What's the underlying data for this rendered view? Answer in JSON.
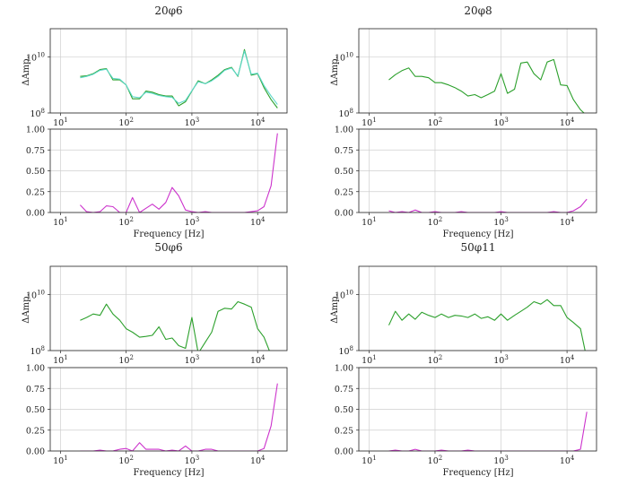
{
  "colors": {
    "measured": "#2ca02c",
    "fitted": "#5ad8c8",
    "ratio": "#cc33cc"
  },
  "chart_data": [
    {
      "type": "line",
      "title": "20φ6",
      "xlabel": "Frequency [Hz]",
      "top": {
        "ylabel": "ΔAmp.",
        "yscale": "log",
        "ylim": [
          100000000.0,
          100000000000.0
        ],
        "ticks": [
          {
            "v": 100000000.0,
            "label": "10",
            "sup": "8"
          },
          {
            "v": 10000000000.0,
            "label": "10",
            "sup": "10"
          }
        ],
        "series": [
          {
            "name": "measured",
            "color_key": "measured",
            "x": [
              20,
              25,
              31.5,
              40,
              50,
              63,
              80,
              100,
              125,
              160,
              200,
              250,
              315,
              400,
              500,
              630,
              800,
              1000,
              1250,
              1600,
              2000,
              2500,
              3150,
              4000,
              5000,
              6300,
              8000,
              10000,
              12500,
              16000,
              20000
            ],
            "y": [
              2000000000.0,
              2100000000.0,
              2500000000.0,
              3500000000.0,
              3800000000.0,
              1500000000.0,
              1500000000.0,
              1000000000.0,
              320000000.0,
              320000000.0,
              600000000.0,
              550000000.0,
              450000000.0,
              400000000.0,
              400000000.0,
              180000000.0,
              250000000.0,
              600000000.0,
              1400000000.0,
              1100000000.0,
              1500000000.0,
              2200000000.0,
              3500000000.0,
              4200000000.0,
              2000000000.0,
              18000000000.0,
              2200000000.0,
              2500000000.0,
              800000000.0,
              300000000.0,
              150000000.0
            ]
          },
          {
            "name": "fitted",
            "color_key": "fitted",
            "x": [
              20,
              25,
              31.5,
              40,
              50,
              63,
              80,
              100,
              125,
              160,
              200,
              250,
              315,
              400,
              500,
              630,
              800,
              1000,
              1250,
              1600,
              2000,
              2500,
              3150,
              4000,
              5000,
              6300,
              8000,
              10000,
              12500,
              16000,
              20000
            ],
            "y": [
              1800000000.0,
              2000000000.0,
              2400000000.0,
              3300000000.0,
              3600000000.0,
              1700000000.0,
              1600000000.0,
              1000000000.0,
              380000000.0,
              350000000.0,
              550000000.0,
              500000000.0,
              420000000.0,
              380000000.0,
              360000000.0,
              220000000.0,
              280000000.0,
              620000000.0,
              1300000000.0,
              1100000000.0,
              1400000000.0,
              2000000000.0,
              3300000000.0,
              4000000000.0,
              2100000000.0,
              16000000000.0,
              2400000000.0,
              2600000000.0,
              950000000.0,
              400000000.0,
              200000000.0
            ]
          }
        ]
      },
      "bottom": {
        "ylim": [
          0,
          1
        ],
        "yticks": [
          "0.00",
          "0.25",
          "0.50",
          "0.75",
          "1.00"
        ],
        "series": [
          {
            "name": "ratio",
            "color_key": "ratio",
            "x": [
              20,
              25,
              31.5,
              40,
              50,
              63,
              80,
              100,
              125,
              160,
              200,
              250,
              315,
              400,
              500,
              630,
              800,
              1000,
              1250,
              1600,
              2000,
              2500,
              3150,
              4000,
              5000,
              6300,
              8000,
              10000,
              12500,
              16000,
              20000
            ],
            "y": [
              0.09,
              0.01,
              0.0,
              0.01,
              0.08,
              0.07,
              0.0,
              0.0,
              0.18,
              0.0,
              0.05,
              0.1,
              0.04,
              0.12,
              0.3,
              0.2,
              0.03,
              0.01,
              0.0,
              0.01,
              0.0,
              0.0,
              0.0,
              0.0,
              0.0,
              0.0,
              0.01,
              0.02,
              0.07,
              0.32,
              0.95
            ]
          }
        ]
      }
    },
    {
      "type": "line",
      "title": "20φ8",
      "xlabel": "Frequency [Hz]",
      "top": {
        "ylabel": "ΔAmp.",
        "yscale": "log",
        "ylim": [
          100000000.0,
          100000000000.0
        ],
        "ticks": [
          {
            "v": 100000000.0,
            "label": "10",
            "sup": "8"
          },
          {
            "v": 10000000000.0,
            "label": "10",
            "sup": "10"
          }
        ],
        "series": [
          {
            "name": "measured",
            "color_key": "measured",
            "x": [
              20,
              25,
              31.5,
              40,
              50,
              63,
              80,
              100,
              125,
              160,
              200,
              250,
              315,
              400,
              500,
              630,
              800,
              1000,
              1250,
              1600,
              2000,
              2500,
              3150,
              4000,
              5000,
              6300,
              8000,
              10000,
              12500,
              16000,
              20000
            ],
            "y": [
              1500000000.0,
              2300000000.0,
              3200000000.0,
              4000000000.0,
              2000000000.0,
              2000000000.0,
              1800000000.0,
              1200000000.0,
              1200000000.0,
              1000000000.0,
              800000000.0,
              600000000.0,
              400000000.0,
              450000000.0,
              350000000.0,
              450000000.0,
              600000000.0,
              2500000000.0,
              500000000.0,
              700000000.0,
              6000000000.0,
              6500000000.0,
              2500000000.0,
              1500000000.0,
              6500000000.0,
              8000000000.0,
              1000000000.0,
              950000000.0,
              300000000.0,
              130000000.0,
              80000000.0
            ]
          }
        ]
      },
      "bottom": {
        "ylim": [
          0,
          1
        ],
        "yticks": [
          "0.00",
          "0.25",
          "0.50",
          "0.75",
          "1.00"
        ],
        "series": [
          {
            "name": "ratio",
            "color_key": "ratio",
            "x": [
              20,
              25,
              31.5,
              40,
              50,
              63,
              80,
              100,
              125,
              160,
              200,
              250,
              315,
              400,
              500,
              630,
              800,
              1000,
              1250,
              1600,
              2000,
              2500,
              3150,
              4000,
              5000,
              6300,
              8000,
              10000,
              12500,
              16000,
              20000
            ],
            "y": [
              0.02,
              0.0,
              0.01,
              0.0,
              0.03,
              0.0,
              0.0,
              0.01,
              0.0,
              0.0,
              0.0,
              0.01,
              0.0,
              0.0,
              0.0,
              0.0,
              0.0,
              0.01,
              0.0,
              0.0,
              0.0,
              0.0,
              0.0,
              0.0,
              0.0,
              0.01,
              0.0,
              0.0,
              0.02,
              0.07,
              0.16
            ]
          }
        ]
      }
    },
    {
      "type": "line",
      "title": "50φ6",
      "xlabel": "Frequency [Hz]",
      "top": {
        "ylabel": "ΔAmp.",
        "yscale": "log",
        "ylim": [
          100000000.0,
          100000000000.0
        ],
        "ticks": [
          {
            "v": 100000000.0,
            "label": "10",
            "sup": "8"
          },
          {
            "v": 10000000000.0,
            "label": "10",
            "sup": "10"
          }
        ],
        "series": [
          {
            "name": "measured",
            "color_key": "measured",
            "x": [
              20,
              25,
              31.5,
              40,
              50,
              63,
              80,
              100,
              125,
              160,
              200,
              250,
              315,
              400,
              500,
              630,
              800,
              1000,
              1250,
              1600,
              2000,
              2500,
              3150,
              4000,
              5000,
              6300,
              8000,
              10000,
              12500,
              16000,
              20000
            ],
            "y": [
              1200000000.0,
              1500000000.0,
              2000000000.0,
              1800000000.0,
              4500000000.0,
              2000000000.0,
              1200000000.0,
              600000000.0,
              450000000.0,
              300000000.0,
              320000000.0,
              350000000.0,
              700000000.0,
              250000000.0,
              280000000.0,
              150000000.0,
              120000000.0,
              1500000000.0,
              80000000.0,
              200000000.0,
              450000000.0,
              2500000000.0,
              3200000000.0,
              3000000000.0,
              5500000000.0,
              4500000000.0,
              3500000000.0,
              600000000.0,
              300000000.0,
              70000000.0,
              40000000.0
            ]
          }
        ]
      },
      "bottom": {
        "ylim": [
          0,
          1
        ],
        "yticks": [
          "0.00",
          "0.25",
          "0.50",
          "0.75",
          "1.00"
        ],
        "series": [
          {
            "name": "ratio",
            "color_key": "ratio",
            "x": [
              20,
              25,
              31.5,
              40,
              50,
              63,
              80,
              100,
              125,
              160,
              200,
              250,
              315,
              400,
              500,
              630,
              800,
              1000,
              1250,
              1600,
              2000,
              2500,
              3150,
              4000,
              5000,
              6300,
              8000,
              10000,
              12500,
              16000,
              20000
            ],
            "y": [
              0.0,
              0.0,
              0.0,
              0.01,
              0.0,
              0.0,
              0.02,
              0.03,
              0.0,
              0.1,
              0.02,
              0.02,
              0.02,
              0.0,
              0.01,
              0.0,
              0.06,
              0.0,
              0.0,
              0.02,
              0.02,
              0.0,
              0.0,
              0.0,
              0.0,
              0.0,
              0.0,
              0.0,
              0.03,
              0.3,
              0.81
            ]
          }
        ]
      }
    },
    {
      "type": "line",
      "title": "50φ11",
      "xlabel": "Frequency [Hz]",
      "top": {
        "ylabel": "ΔAmp.",
        "yscale": "log",
        "ylim": [
          100000000.0,
          100000000000.0
        ],
        "ticks": [
          {
            "v": 100000000.0,
            "label": "10",
            "sup": "8"
          },
          {
            "v": 10000000000.0,
            "label": "10",
            "sup": "10"
          }
        ],
        "series": [
          {
            "name": "measured",
            "color_key": "measured",
            "x": [
              20,
              25,
              31.5,
              40,
              50,
              63,
              80,
              100,
              125,
              160,
              200,
              250,
              315,
              400,
              500,
              630,
              800,
              1000,
              1250,
              1600,
              2000,
              2500,
              3150,
              4000,
              5000,
              6300,
              8000,
              10000,
              12500,
              16000,
              20000
            ],
            "y": [
              800000000.0,
              2500000000.0,
              1200000000.0,
              2000000000.0,
              1300000000.0,
              2300000000.0,
              1800000000.0,
              1500000000.0,
              2000000000.0,
              1500000000.0,
              1800000000.0,
              1700000000.0,
              1500000000.0,
              2000000000.0,
              1400000000.0,
              1600000000.0,
              1200000000.0,
              2000000000.0,
              1200000000.0,
              1800000000.0,
              2500000000.0,
              3500000000.0,
              5500000000.0,
              4500000000.0,
              6500000000.0,
              4000000000.0,
              4000000000.0,
              1500000000.0,
              1000000000.0,
              600000000.0,
              40000000.0
            ]
          }
        ]
      },
      "bottom": {
        "ylim": [
          0,
          1
        ],
        "yticks": [
          "0.00",
          "0.25",
          "0.50",
          "0.75",
          "1.00"
        ],
        "series": [
          {
            "name": "ratio",
            "color_key": "ratio",
            "x": [
              20,
              25,
              31.5,
              40,
              50,
              63,
              80,
              100,
              125,
              160,
              200,
              250,
              315,
              400,
              500,
              630,
              800,
              1000,
              1250,
              1600,
              2000,
              2500,
              3150,
              4000,
              5000,
              6300,
              8000,
              10000,
              12500,
              16000,
              20000
            ],
            "y": [
              0.0,
              0.01,
              0.0,
              0.0,
              0.02,
              0.0,
              0.0,
              0.0,
              0.01,
              0.0,
              0.0,
              0.0,
              0.01,
              0.0,
              0.0,
              0.0,
              0.0,
              0.0,
              0.0,
              0.0,
              0.0,
              0.0,
              0.0,
              0.0,
              0.0,
              0.0,
              0.0,
              0.0,
              0.0,
              0.02,
              0.47
            ]
          }
        ]
      }
    }
  ],
  "xticks": [
    {
      "v": 10,
      "label": "10",
      "sup": "1"
    },
    {
      "v": 100,
      "label": "10",
      "sup": "2"
    },
    {
      "v": 1000,
      "label": "10",
      "sup": "3"
    },
    {
      "v": 10000,
      "label": "10",
      "sup": "4"
    }
  ]
}
